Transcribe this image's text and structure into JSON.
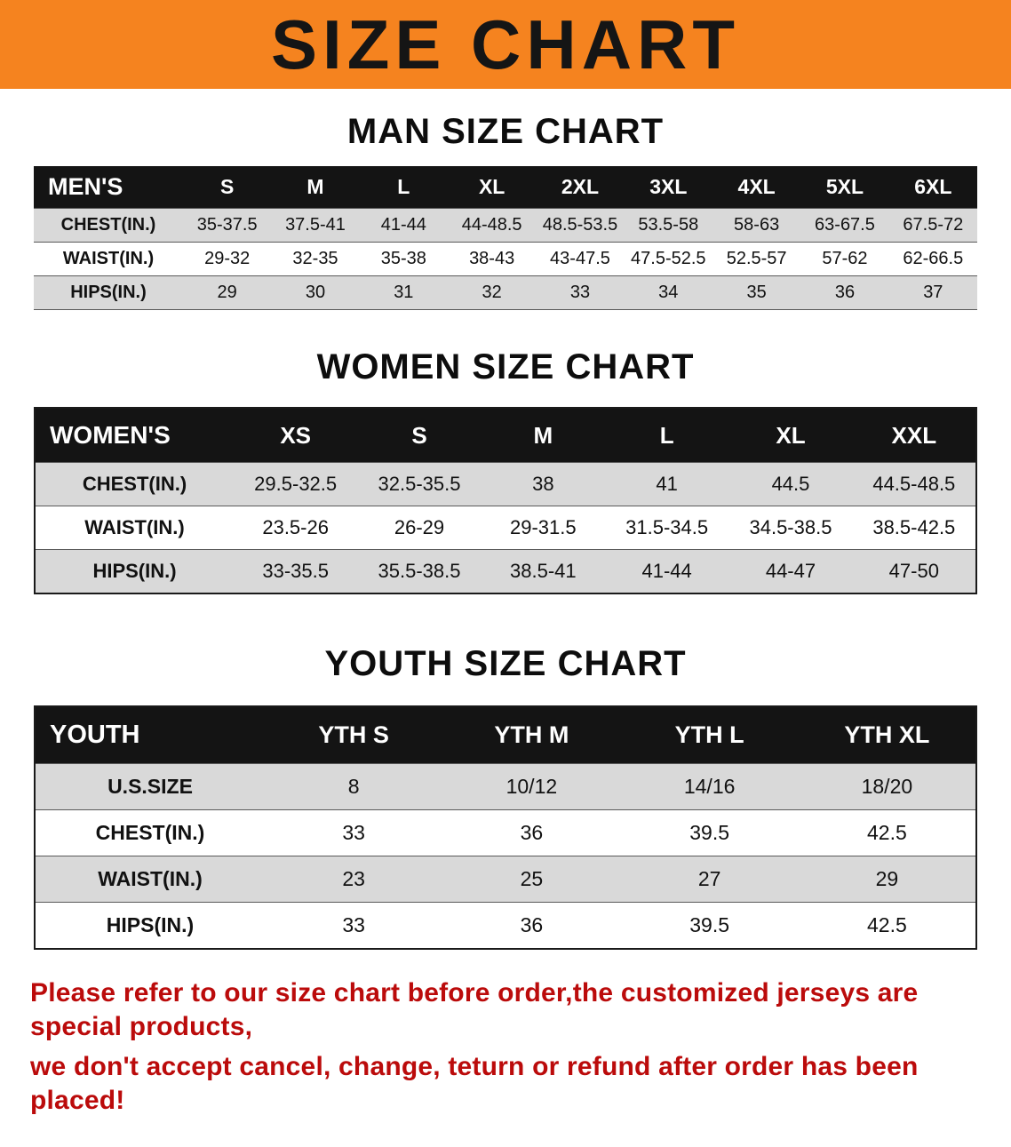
{
  "banner": {
    "title": "SIZE CHART"
  },
  "theme": {
    "banner_bg": "#f5831f",
    "header_row_bg": "#141414",
    "shade_row_bg": "#d9d9d9",
    "notice_color": "#bb0b0b"
  },
  "sections": [
    {
      "title": "MAN SIZE CHART",
      "table": {
        "header": [
          "MEN'S",
          "S",
          "M",
          "L",
          "XL",
          "2XL",
          "3XL",
          "4XL",
          "5XL",
          "6XL"
        ],
        "rows": [
          {
            "label": "CHEST(IN.)",
            "values": [
              "35-37.5",
              "37.5-41",
              "41-44",
              "44-48.5",
              "48.5-53.5",
              "53.5-58",
              "58-63",
              "63-67.5",
              "67.5-72"
            ]
          },
          {
            "label": "WAIST(IN.)",
            "values": [
              "29-32",
              "32-35",
              "35-38",
              "38-43",
              "43-47.5",
              "47.5-52.5",
              "52.5-57",
              "57-62",
              "62-66.5"
            ]
          },
          {
            "label": "HIPS(IN.)",
            "values": [
              "29",
              "30",
              "31",
              "32",
              "33",
              "34",
              "35",
              "36",
              "37"
            ]
          }
        ]
      }
    },
    {
      "title": "WOMEN SIZE CHART",
      "table": {
        "header": [
          "WOMEN'S",
          "XS",
          "S",
          "M",
          "L",
          "XL",
          "XXL"
        ],
        "rows": [
          {
            "label": "CHEST(IN.)",
            "values": [
              "29.5-32.5",
              "32.5-35.5",
              "38",
              "41",
              "44.5",
              "44.5-48.5"
            ]
          },
          {
            "label": "WAIST(IN.)",
            "values": [
              "23.5-26",
              "26-29",
              "29-31.5",
              "31.5-34.5",
              "34.5-38.5",
              "38.5-42.5"
            ]
          },
          {
            "label": "HIPS(IN.)",
            "values": [
              "33-35.5",
              "35.5-38.5",
              "38.5-41",
              "41-44",
              "44-47",
              "47-50"
            ]
          }
        ]
      }
    },
    {
      "title": "YOUTH SIZE CHART",
      "table": {
        "header": [
          "YOUTH",
          "YTH S",
          "YTH M",
          "YTH L",
          "YTH XL"
        ],
        "rows": [
          {
            "label": "U.S.SIZE",
            "values": [
              "8",
              "10/12",
              "14/16",
              "18/20"
            ]
          },
          {
            "label": "CHEST(IN.)",
            "values": [
              "33",
              "36",
              "39.5",
              "42.5"
            ]
          },
          {
            "label": "WAIST(IN.)",
            "values": [
              "23",
              "25",
              "27",
              "29"
            ]
          },
          {
            "label": "HIPS(IN.)",
            "values": [
              "33",
              "36",
              "39.5",
              "42.5"
            ]
          }
        ]
      }
    }
  ],
  "notice": {
    "line1": "Please refer to our size chart before order,the customized jerseys are special products,",
    "line2": "we don't accept cancel, change, teturn or refund after order has been placed!"
  }
}
